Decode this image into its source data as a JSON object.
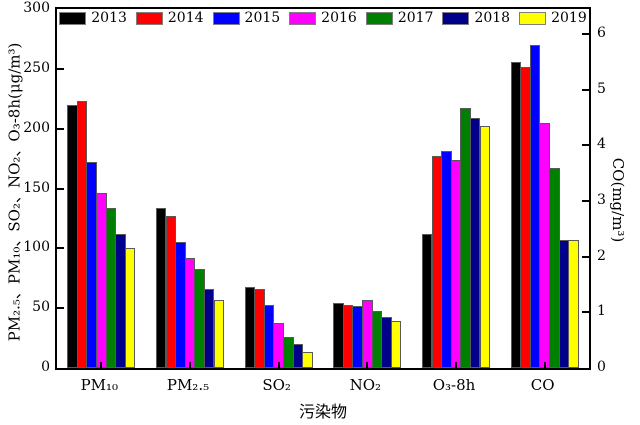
{
  "chart_data": {
    "type": "bar",
    "title": "",
    "categories": [
      "PM₁₀",
      "PM₂.₅",
      "SO₂",
      "NO₂",
      "O₃-8h",
      "CO"
    ],
    "series": [
      {
        "name": "2013",
        "color": "#000000",
        "values": [
          220,
          134,
          68,
          54,
          112,
          5.5
        ]
      },
      {
        "name": "2014",
        "color": "#ff0000",
        "values": [
          223,
          127,
          66,
          53,
          177,
          5.4
        ]
      },
      {
        "name": "2015",
        "color": "#0000ff",
        "values": [
          172,
          105,
          53,
          52,
          181,
          5.8
        ]
      },
      {
        "name": "2016",
        "color": "#ff00ff",
        "values": [
          146,
          92,
          38,
          57,
          174,
          4.4
        ]
      },
      {
        "name": "2017",
        "color": "#008000",
        "values": [
          134,
          83,
          26,
          48,
          217,
          3.6
        ]
      },
      {
        "name": "2018",
        "color": "#00008b",
        "values": [
          112,
          66,
          20,
          43,
          209,
          2.3
        ]
      },
      {
        "name": "2019",
        "color": "#ffff00",
        "values": [
          100,
          57,
          13,
          39,
          202,
          2.3
        ]
      }
    ],
    "left_axis": {
      "label": "PM₂.₅、PM₁₀、SO₂、NO₂、O₃-8h(μg/m³)",
      "min": 0,
      "max": 300,
      "ticks": [
        0,
        50,
        100,
        150,
        200,
        250,
        300
      ]
    },
    "right_axis": {
      "label": "CO(mg/m³)",
      "min": 0,
      "max": 6.45,
      "ticks": [
        0,
        1,
        2,
        3,
        4,
        5,
        6
      ],
      "applies_to_category": "CO"
    },
    "x_axis": {
      "label": "污染物"
    },
    "legend": {
      "position": "top",
      "entries": [
        "2013",
        "2014",
        "2015",
        "2016",
        "2017",
        "2018",
        "2019"
      ]
    },
    "grid": false,
    "bar_border_color": "#595959",
    "legend_swatch_border": "#7f7f7f",
    "axis_color": "#000000"
  }
}
